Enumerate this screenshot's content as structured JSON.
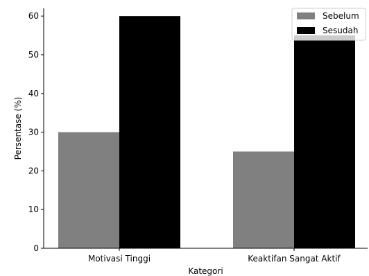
{
  "chart_data": {
    "type": "bar",
    "title": "",
    "xlabel": "Kategori",
    "ylabel": "Persentase (%)",
    "categories": [
      "Motivasi Tinggi",
      "Keaktifan Sangat Aktif"
    ],
    "series": [
      {
        "name": "Sebelum",
        "values": [
          30,
          25
        ],
        "color": "#808080"
      },
      {
        "name": "Sesudah",
        "values": [
          60,
          55
        ],
        "color": "#000000"
      }
    ],
    "ylim": [
      0,
      62
    ],
    "yticks": [
      0,
      10,
      20,
      30,
      40,
      50,
      60
    ],
    "grid": false,
    "legend_position": "top-right"
  }
}
